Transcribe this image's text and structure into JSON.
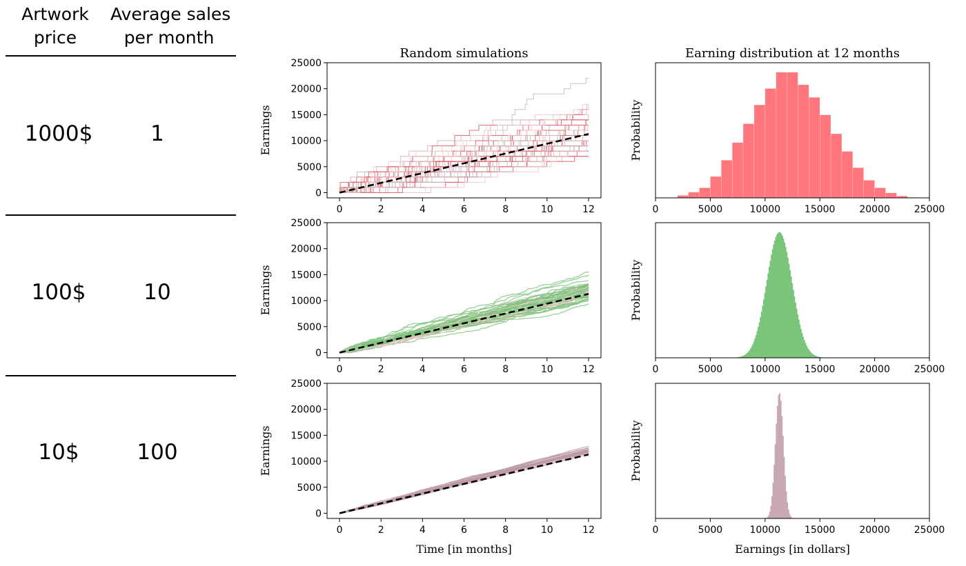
{
  "table": {
    "headers": [
      {
        "lines": [
          "Artwork",
          "price"
        ]
      },
      {
        "lines": [
          "Average sales",
          "per month"
        ]
      }
    ],
    "rows": [
      {
        "price": "1000$",
        "sales": "1"
      },
      {
        "price": "100$",
        "sales": "10"
      },
      {
        "price": "10$",
        "sales": "100"
      }
    ]
  },
  "colors": {
    "red_fill": "#ff777d",
    "green_fill": "#7bc47b",
    "purple_fill": "#c7a8b4",
    "trace_light": "#f0c8cc",
    "mean_line": "#000000"
  },
  "chart_data": [
    {
      "type": "line",
      "title": "Random simulations",
      "ylabel": "Earnings",
      "xlabel": "",
      "xlim": [
        -0.6,
        12.6
      ],
      "ylim": [
        -1000,
        25000
      ],
      "xticks": [
        0,
        2,
        4,
        6,
        8,
        10,
        12
      ],
      "yticks": [
        0,
        5000,
        10000,
        15000,
        20000,
        25000
      ],
      "price": 1000,
      "sales_per_month": 1,
      "mean_line": {
        "x": [
          0,
          12
        ],
        "y": [
          0,
          11300
        ],
        "style": "dashed"
      },
      "trace_style": "step"
    },
    {
      "type": "bar",
      "title": "Earning distribution at 12 months",
      "ylabel": "Probability",
      "xlabel": "",
      "xlim": [
        0,
        25000
      ],
      "xticks": [
        0,
        5000,
        10000,
        15000,
        20000,
        25000
      ],
      "bin_edges": [
        1000,
        2000,
        3000,
        4000,
        5000,
        6000,
        7000,
        8000,
        9000,
        10000,
        11000,
        12000,
        13000,
        14000,
        15000,
        16000,
        17000,
        18000,
        19000,
        20000,
        21000,
        22000,
        23000,
        24000
      ],
      "values": [
        0.003,
        0.02,
        0.045,
        0.08,
        0.17,
        0.3,
        0.44,
        0.59,
        0.74,
        0.87,
        1.0,
        1.0,
        0.9,
        0.8,
        0.66,
        0.51,
        0.37,
        0.24,
        0.14,
        0.08,
        0.04,
        0.015,
        0.004
      ]
    },
    {
      "type": "line",
      "title": "",
      "ylabel": "Earnings",
      "xlabel": "",
      "xlim": [
        -0.6,
        12.6
      ],
      "ylim": [
        -1000,
        25000
      ],
      "xticks": [
        0,
        2,
        4,
        6,
        8,
        10,
        12
      ],
      "yticks": [
        0,
        5000,
        10000,
        15000,
        20000,
        25000
      ],
      "price": 100,
      "sales_per_month": 10,
      "mean_line": {
        "x": [
          0,
          12
        ],
        "y": [
          0,
          11300
        ],
        "style": "dashed"
      }
    },
    {
      "type": "area",
      "title": "",
      "ylabel": "Probability",
      "xlabel": "",
      "xlim": [
        0,
        25000
      ],
      "xticks": [
        0,
        5000,
        10000,
        15000,
        20000,
        25000
      ],
      "mean": 11300,
      "sd": 1150
    },
    {
      "type": "line",
      "title": "",
      "ylabel": "Earnings",
      "xlabel": "Time [in months]",
      "xlim": [
        -0.6,
        12.6
      ],
      "ylim": [
        -1000,
        25000
      ],
      "xticks": [
        0,
        2,
        4,
        6,
        8,
        10,
        12
      ],
      "yticks": [
        0,
        5000,
        10000,
        15000,
        20000,
        25000
      ],
      "price": 10,
      "sales_per_month": 100,
      "mean_line": {
        "x": [
          0,
          12
        ],
        "y": [
          0,
          11300
        ],
        "style": "dashed"
      }
    },
    {
      "type": "area",
      "title": "",
      "ylabel": "Probability",
      "xlabel": "Earnings [in dollars]",
      "xlim": [
        0,
        25000
      ],
      "xticks": [
        0,
        5000,
        10000,
        15000,
        20000,
        25000
      ],
      "mean": 11300,
      "sd": 360
    }
  ]
}
